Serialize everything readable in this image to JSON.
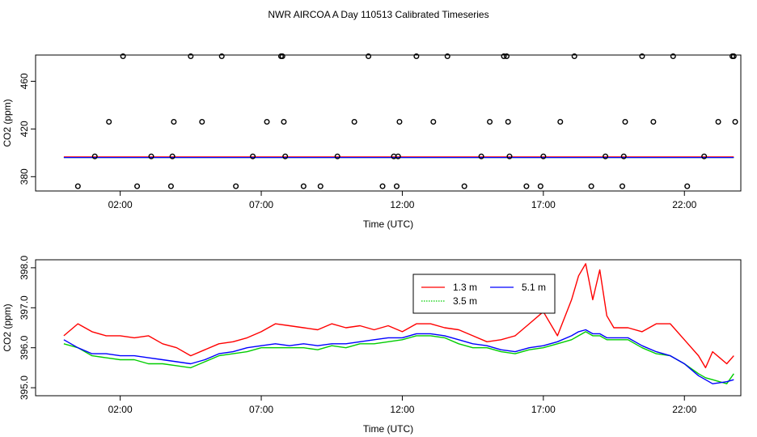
{
  "figure": {
    "title": "NWR AIRCOA A  Day 110513  Calibrated Timeseries"
  },
  "chart_data": [
    {
      "type": "scatter",
      "panel": "top",
      "xlabel": "Time (UTC)",
      "ylabel": "CO2 (ppm)",
      "xlim": [
        -1.0,
        24.0
      ],
      "ylim": [
        368,
        482
      ],
      "xticks": [
        2,
        7,
        12,
        17,
        22
      ],
      "xtick_labels": [
        "02:00",
        "07:00",
        "12:00",
        "17:00",
        "22:00"
      ],
      "yticks": [
        380,
        420,
        460
      ],
      "ytick_labels": [
        "380",
        "420",
        "460"
      ],
      "points_x": [
        0.5,
        1.1,
        1.6,
        2.1,
        2.6,
        3.1,
        3.8,
        3.85,
        3.9,
        4.5,
        4.9,
        5.6,
        6.1,
        6.7,
        7.2,
        7.7,
        7.75,
        7.8,
        7.85,
        8.5,
        9.1,
        9.7,
        10.3,
        10.8,
        11.3,
        11.7,
        11.8,
        11.85,
        11.9,
        12.5,
        13.1,
        13.6,
        14.2,
        14.8,
        15.1,
        15.6,
        15.7,
        15.75,
        15.8,
        16.4,
        16.9,
        17.0,
        17.6,
        18.1,
        18.7,
        19.2,
        19.8,
        19.85,
        19.9,
        20.5,
        20.9,
        21.6,
        22.1,
        22.7,
        23.2,
        23.7,
        23.75,
        23.8
      ],
      "points_y": [
        372,
        397,
        426,
        481,
        372,
        397,
        372,
        397,
        426,
        481,
        426,
        481,
        372,
        397,
        426,
        481,
        481,
        426,
        397,
        372,
        372,
        397,
        426,
        481,
        372,
        397,
        372,
        397,
        426,
        481,
        426,
        481,
        372,
        397,
        426,
        481,
        481,
        426,
        397,
        372,
        372,
        397,
        426,
        481,
        372,
        397,
        372,
        397,
        426,
        481,
        426,
        481,
        372,
        397,
        426,
        481,
        481,
        426
      ],
      "series": [
        {
          "name": "1.3 m",
          "color": "#ff0000",
          "level": 396.6
        },
        {
          "name": "3.5 m",
          "color": "#00cd00",
          "level": 396.0
        },
        {
          "name": "5.1 m",
          "color": "#0000ff",
          "level": 396.1
        }
      ]
    },
    {
      "type": "line",
      "panel": "bottom",
      "xlabel": "Time (UTC)",
      "ylabel": "CO2 (ppm)",
      "xlim": [
        -1.0,
        24.0
      ],
      "ylim": [
        394.8,
        398.2
      ],
      "xticks": [
        2,
        7,
        12,
        17,
        22
      ],
      "xtick_labels": [
        "02:00",
        "07:00",
        "12:00",
        "17:00",
        "22:00"
      ],
      "yticks": [
        395.0,
        396.0,
        397.0,
        398.0
      ],
      "ytick_labels": [
        "395.0",
        "396.0",
        "397.0",
        "398.0"
      ],
      "legend": {
        "position": "top-center",
        "entries": [
          "1.3 m",
          "5.1 m",
          "3.5 m"
        ]
      },
      "x": [
        0.0,
        0.5,
        1.0,
        1.5,
        2.0,
        2.5,
        3.0,
        3.5,
        4.0,
        4.5,
        5.0,
        5.5,
        6.0,
        6.5,
        7.0,
        7.5,
        8.0,
        8.5,
        9.0,
        9.5,
        10.0,
        10.5,
        11.0,
        11.5,
        12.0,
        12.5,
        13.0,
        13.5,
        14.0,
        14.5,
        15.0,
        15.5,
        16.0,
        16.5,
        17.0,
        17.5,
        18.0,
        18.25,
        18.5,
        18.75,
        19.0,
        19.25,
        19.5,
        20.0,
        20.5,
        21.0,
        21.5,
        22.0,
        22.5,
        22.75,
        23.0,
        23.5,
        23.75
      ],
      "series": [
        {
          "name": "1.3 m",
          "color": "#ff0000",
          "values": [
            396.3,
            396.6,
            396.4,
            396.3,
            396.3,
            396.25,
            396.3,
            396.1,
            396.0,
            395.8,
            395.95,
            396.1,
            396.15,
            396.25,
            396.4,
            396.6,
            396.55,
            396.5,
            396.45,
            396.6,
            396.5,
            396.55,
            396.45,
            396.55,
            396.4,
            396.6,
            396.6,
            396.5,
            396.45,
            396.3,
            396.15,
            396.2,
            396.3,
            396.6,
            396.9,
            396.3,
            397.2,
            397.8,
            398.1,
            397.2,
            397.95,
            396.8,
            396.5,
            396.5,
            396.4,
            396.6,
            396.6,
            396.2,
            395.8,
            395.5,
            395.9,
            395.6,
            395.8
          ]
        },
        {
          "name": "3.5 m",
          "color": "#00cd00",
          "values": [
            396.1,
            396.0,
            395.8,
            395.75,
            395.7,
            395.7,
            395.6,
            395.6,
            395.55,
            395.5,
            395.65,
            395.8,
            395.85,
            395.9,
            396.0,
            396.0,
            396.0,
            396.0,
            395.95,
            396.05,
            396.0,
            396.1,
            396.1,
            396.15,
            396.2,
            396.3,
            396.3,
            396.25,
            396.1,
            396.0,
            396.0,
            395.9,
            395.85,
            395.95,
            396.0,
            396.1,
            396.2,
            396.3,
            396.4,
            396.3,
            396.3,
            396.2,
            396.2,
            396.2,
            396.0,
            395.85,
            395.8,
            395.6,
            395.35,
            395.25,
            395.2,
            395.1,
            395.35
          ]
        },
        {
          "name": "5.1 m",
          "color": "#0000ff",
          "values": [
            396.2,
            396.0,
            395.85,
            395.85,
            395.8,
            395.8,
            395.75,
            395.7,
            395.65,
            395.6,
            395.7,
            395.85,
            395.9,
            396.0,
            396.05,
            396.1,
            396.05,
            396.1,
            396.05,
            396.1,
            396.1,
            396.15,
            396.2,
            396.25,
            396.25,
            396.35,
            396.35,
            396.3,
            396.2,
            396.1,
            396.05,
            395.95,
            395.9,
            396.0,
            396.05,
            396.15,
            396.3,
            396.4,
            396.45,
            396.35,
            396.35,
            396.25,
            396.25,
            396.25,
            396.05,
            395.9,
            395.8,
            395.6,
            395.3,
            395.2,
            395.1,
            395.15,
            395.2
          ]
        }
      ]
    }
  ]
}
